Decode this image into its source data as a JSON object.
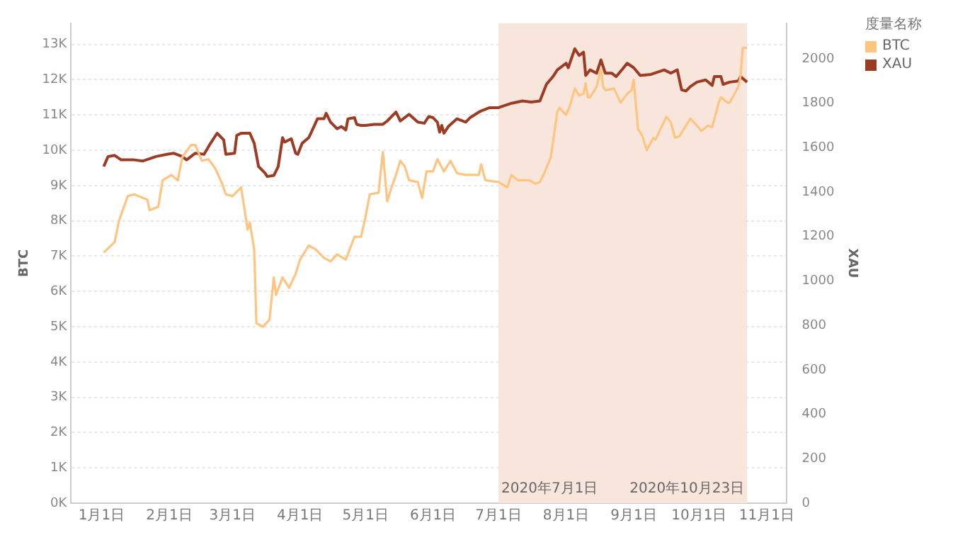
{
  "chart_data": {
    "type": "line",
    "ylabel": "BTC",
    "y2label": "XAU",
    "legend_title": "度量名称",
    "legend": "top right",
    "grid": "y",
    "xlim": [
      "2019-12-18",
      "2020-11-10"
    ],
    "xticks": [
      {
        "value": "2020-01-01",
        "label": "1月1日"
      },
      {
        "value": "2020-02-01",
        "label": "2月1日"
      },
      {
        "value": "2020-03-01",
        "label": "3月1日"
      },
      {
        "value": "2020-04-01",
        "label": "4月1日"
      },
      {
        "value": "2020-05-01",
        "label": "5月1日"
      },
      {
        "value": "2020-06-01",
        "label": "6月1日"
      },
      {
        "value": "2020-07-01",
        "label": "7月1日"
      },
      {
        "value": "2020-08-01",
        "label": "8月1日"
      },
      {
        "value": "2020-09-01",
        "label": "9月1日"
      },
      {
        "value": "2020-10-01",
        "label": "10月1日"
      },
      {
        "value": "2020-11-01",
        "label": "11月1日"
      }
    ],
    "ylim": [
      0,
      13600
    ],
    "yticks": [
      {
        "value": 0,
        "label": "0K"
      },
      {
        "value": 1000,
        "label": "1K"
      },
      {
        "value": 2000,
        "label": "2K"
      },
      {
        "value": 3000,
        "label": "3K"
      },
      {
        "value": 4000,
        "label": "4K"
      },
      {
        "value": 5000,
        "label": "5K"
      },
      {
        "value": 6000,
        "label": "6K"
      },
      {
        "value": 7000,
        "label": "7K"
      },
      {
        "value": 8000,
        "label": "8K"
      },
      {
        "value": 9000,
        "label": "9K"
      },
      {
        "value": 10000,
        "label": "10K"
      },
      {
        "value": 11000,
        "label": "11K"
      },
      {
        "value": 12000,
        "label": "12K"
      },
      {
        "value": 13000,
        "label": "13K"
      }
    ],
    "y2lim": [
      0,
      2160
    ],
    "y2ticks": [
      0,
      200,
      400,
      600,
      800,
      1000,
      1200,
      1400,
      1600,
      1800,
      2000
    ],
    "bands": [
      {
        "axis": "x",
        "from": "2020-07-01",
        "to": "2020-10-23",
        "color": "#f8e6dd"
      }
    ],
    "annotations": [
      {
        "text": "2020年7月1日",
        "x": "2020-07-01",
        "y": 0
      },
      {
        "text": "2020年10月23日",
        "x": "2020-10-23",
        "y": 0
      }
    ],
    "series": [
      {
        "name": "BTC",
        "color": "#ffc47f",
        "x": [
          "2020-01-02",
          "2020-01-07",
          "2020-01-09",
          "2020-01-13",
          "2020-01-16",
          "2020-01-22",
          "2020-01-23",
          "2020-01-27",
          "2020-01-29",
          "2020-02-02",
          "2020-02-05",
          "2020-02-07",
          "2020-02-11",
          "2020-02-13",
          "2020-02-16",
          "2020-02-19",
          "2020-02-22",
          "2020-02-25",
          "2020-02-27",
          "2020-03-01",
          "2020-03-05",
          "2020-03-08",
          "2020-03-09",
          "2020-03-11",
          "2020-03-12",
          "2020-03-15",
          "2020-03-18",
          "2020-03-20",
          "2020-03-21",
          "2020-03-24",
          "2020-03-27",
          "2020-03-30",
          "2020-04-01",
          "2020-04-05",
          "2020-04-08",
          "2020-04-12",
          "2020-04-15",
          "2020-04-18",
          "2020-04-22",
          "2020-04-26",
          "2020-04-29",
          "2020-05-01",
          "2020-05-03",
          "2020-05-07",
          "2020-05-09",
          "2020-05-11",
          "2020-05-13",
          "2020-05-15",
          "2020-05-17",
          "2020-05-19",
          "2020-05-21",
          "2020-05-25",
          "2020-05-27",
          "2020-05-29",
          "2020-06-01",
          "2020-06-03",
          "2020-06-06",
          "2020-06-09",
          "2020-06-12",
          "2020-06-16",
          "2020-06-22",
          "2020-06-23",
          "2020-06-25",
          "2020-07-01",
          "2020-07-05",
          "2020-07-07",
          "2020-07-10",
          "2020-07-15",
          "2020-07-18",
          "2020-07-20",
          "2020-07-22",
          "2020-07-25",
          "2020-07-28",
          "2020-07-29",
          "2020-08-01",
          "2020-08-03",
          "2020-08-05",
          "2020-08-07",
          "2020-08-09",
          "2020-08-10",
          "2020-08-11",
          "2020-08-12",
          "2020-08-15",
          "2020-08-17",
          "2020-08-18",
          "2020-08-19",
          "2020-08-23",
          "2020-08-26",
          "2020-08-29",
          "2020-08-31",
          "2020-09-01",
          "2020-09-03",
          "2020-09-05",
          "2020-09-07",
          "2020-09-10",
          "2020-09-11",
          "2020-09-16",
          "2020-09-18",
          "2020-09-20",
          "2020-09-22",
          "2020-09-24",
          "2020-09-27",
          "2020-09-30",
          "2020-10-02",
          "2020-10-05",
          "2020-10-07",
          "2020-10-10",
          "2020-10-11",
          "2020-10-14",
          "2020-10-15",
          "2020-10-19",
          "2020-10-20",
          "2020-10-21",
          "2020-10-23"
        ],
        "values": [
          7100,
          7400,
          8000,
          8700,
          8750,
          8600,
          8300,
          8400,
          9150,
          9300,
          9150,
          9800,
          10150,
          10150,
          9700,
          9750,
          9500,
          9100,
          8750,
          8700,
          8950,
          7750,
          7950,
          7200,
          5100,
          5000,
          5200,
          6400,
          5900,
          6400,
          6100,
          6500,
          6900,
          7300,
          7200,
          6950,
          6850,
          7050,
          6900,
          7550,
          7550,
          8100,
          8750,
          8800,
          9950,
          8550,
          8950,
          9300,
          9700,
          9550,
          9150,
          9100,
          8650,
          9400,
          9400,
          9750,
          9400,
          9700,
          9350,
          9300,
          9300,
          9600,
          9150,
          9100,
          8950,
          9300,
          9150,
          9150,
          9050,
          9100,
          9350,
          9800,
          11100,
          11200,
          11000,
          11300,
          11750,
          11550,
          11600,
          11900,
          11500,
          11500,
          11800,
          12300,
          11800,
          11700,
          11750,
          11350,
          11600,
          11700,
          12000,
          10600,
          10400,
          10000,
          10350,
          10300,
          10950,
          10800,
          10350,
          10400,
          10600,
          10900,
          10700,
          10550,
          10700,
          10650,
          11350,
          11500,
          11350,
          11350,
          11800,
          12100,
          12900,
          12900
        ]
      },
      {
        "name": "XAU",
        "color": "#9d3c24",
        "axis": "y2",
        "x": [
          "2020-01-02",
          "2020-01-04",
          "2020-01-07",
          "2020-01-10",
          "2020-01-16",
          "2020-01-20",
          "2020-01-26",
          "2020-01-31",
          "2020-02-03",
          "2020-02-07",
          "2020-02-09",
          "2020-02-13",
          "2020-02-17",
          "2020-02-20",
          "2020-02-23",
          "2020-02-26",
          "2020-02-27",
          "2020-03-02",
          "2020-03-03",
          "2020-03-05",
          "2020-03-09",
          "2020-03-11",
          "2020-03-13",
          "2020-03-16",
          "2020-03-17",
          "2020-03-20",
          "2020-03-22",
          "2020-03-24",
          "2020-03-25",
          "2020-03-28",
          "2020-03-30",
          "2020-03-31",
          "2020-04-02",
          "2020-04-05",
          "2020-04-06",
          "2020-04-09",
          "2020-04-12",
          "2020-04-13",
          "2020-04-15",
          "2020-04-18",
          "2020-04-20",
          "2020-04-22",
          "2020-04-23",
          "2020-04-26",
          "2020-04-27",
          "2020-04-29",
          "2020-05-01",
          "2020-05-05",
          "2020-05-09",
          "2020-05-11",
          "2020-05-15",
          "2020-05-16",
          "2020-05-17",
          "2020-05-21",
          "2020-05-25",
          "2020-05-28",
          "2020-05-30",
          "2020-06-01",
          "2020-06-03",
          "2020-06-04",
          "2020-06-05",
          "2020-06-06",
          "2020-06-08",
          "2020-06-12",
          "2020-06-16",
          "2020-06-18",
          "2020-06-22",
          "2020-06-23",
          "2020-06-27",
          "2020-07-01",
          "2020-07-07",
          "2020-07-12",
          "2020-07-16",
          "2020-07-20",
          "2020-07-23",
          "2020-07-26",
          "2020-07-28",
          "2020-08-01",
          "2020-08-02",
          "2020-08-05",
          "2020-08-07",
          "2020-08-09",
          "2020-08-10",
          "2020-08-12",
          "2020-08-15",
          "2020-08-17",
          "2020-08-19",
          "2020-08-22",
          "2020-08-24",
          "2020-08-27",
          "2020-08-29",
          "2020-09-01",
          "2020-09-04",
          "2020-09-09",
          "2020-09-15",
          "2020-09-18",
          "2020-09-21",
          "2020-09-23",
          "2020-09-25",
          "2020-09-27",
          "2020-09-30",
          "2020-10-04",
          "2020-10-07",
          "2020-10-08",
          "2020-10-11",
          "2020-10-12",
          "2020-10-15",
          "2020-10-19",
          "2020-10-20",
          "2020-10-23"
        ],
        "values": [
          1515,
          1560,
          1565,
          1545,
          1545,
          1540,
          1560,
          1570,
          1575,
          1560,
          1545,
          1575,
          1570,
          1620,
          1665,
          1635,
          1570,
          1575,
          1655,
          1665,
          1665,
          1620,
          1515,
          1485,
          1470,
          1475,
          1515,
          1645,
          1625,
          1640,
          1575,
          1570,
          1620,
          1645,
          1665,
          1730,
          1730,
          1755,
          1715,
          1685,
          1695,
          1680,
          1730,
          1735,
          1705,
          1700,
          1700,
          1705,
          1705,
          1720,
          1760,
          1740,
          1720,
          1750,
          1715,
          1710,
          1740,
          1735,
          1715,
          1670,
          1700,
          1665,
          1695,
          1730,
          1715,
          1735,
          1760,
          1765,
          1780,
          1780,
          1800,
          1810,
          1805,
          1810,
          1885,
          1920,
          1950,
          1980,
          1960,
          2045,
          2015,
          2030,
          1925,
          1950,
          1935,
          1995,
          1935,
          1935,
          1920,
          1955,
          1980,
          1960,
          1925,
          1930,
          1950,
          1935,
          1950,
          1860,
          1855,
          1875,
          1895,
          1905,
          1880,
          1920,
          1920,
          1885,
          1895,
          1900,
          1920,
          1895
        ]
      }
    ]
  }
}
